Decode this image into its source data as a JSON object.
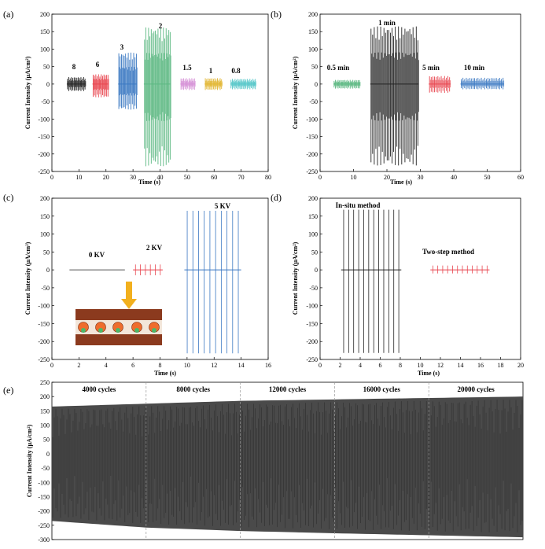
{
  "colors": {
    "black": "#222222",
    "red": "#e8454f",
    "blue": "#3a78c2",
    "green": "#5cb882",
    "pink": "#d58fd6",
    "yellow": "#e2b52f",
    "cyan": "#53c6c8",
    "grey": "#555555",
    "band": "#4a4a4a",
    "electrode": "#8b3a1e",
    "arrow": "#f2b01e"
  },
  "chart_data": [
    {
      "id": "a",
      "panel_label": "(a)",
      "type": "line",
      "xlabel": "Time (s)",
      "ylabel": "Current Intensity (μA/cm²)",
      "xlim": [
        0,
        80
      ],
      "ylim": [
        -250,
        200
      ],
      "xticks": [
        0,
        10,
        20,
        30,
        40,
        50,
        60,
        70,
        80
      ],
      "yticks": [
        -250,
        -200,
        -150,
        -100,
        -50,
        0,
        50,
        100,
        150,
        200
      ],
      "series": [
        {
          "label": "8",
          "x_range": [
            5.5,
            12.5
          ],
          "peak_pos": 20,
          "peak_neg": -20,
          "color": "black",
          "n": 14
        },
        {
          "label": "6",
          "x_range": [
            15,
            21
          ],
          "peak_pos": 28,
          "peak_neg": -38,
          "color": "red",
          "n": 12
        },
        {
          "label": "3",
          "x_range": [
            24.5,
            31.5
          ],
          "peak_pos": 90,
          "peak_neg": -73,
          "color": "blue",
          "n": 14
        },
        {
          "label": "2",
          "x_range": [
            34,
            44
          ],
          "peak_pos": 162,
          "peak_neg": -235,
          "color": "green",
          "n": 20
        },
        {
          "label": "1.5",
          "x_range": [
            47.5,
            53
          ],
          "peak_pos": 17,
          "peak_neg": -17,
          "color": "pink",
          "n": 11
        },
        {
          "label": "1",
          "x_range": [
            56.5,
            63
          ],
          "peak_pos": 17,
          "peak_neg": -17,
          "color": "yellow",
          "n": 13
        },
        {
          "label": "0.8",
          "x_range": [
            66,
            75.5
          ],
          "peak_pos": 15,
          "peak_neg": -15,
          "color": "cyan",
          "n": 19
        }
      ]
    },
    {
      "id": "b",
      "panel_label": "(b)",
      "type": "line",
      "xlabel": "Time (s)",
      "ylabel": "Current Intensity (μA/cm²)",
      "xlim": [
        0,
        60
      ],
      "ylim": [
        -250,
        200
      ],
      "xticks": [
        0,
        10,
        20,
        30,
        40,
        50,
        60
      ],
      "yticks": [
        -250,
        -200,
        -150,
        -100,
        -50,
        0,
        50,
        100,
        150,
        200
      ],
      "series": [
        {
          "label": "0.5 min",
          "x_range": [
            4,
            12
          ],
          "peak_pos": 12,
          "peak_neg": -13,
          "color": "green",
          "n": 20
        },
        {
          "label": "1 min",
          "x_range": [
            15,
            29.5
          ],
          "peak_pos": 165,
          "peak_neg": -233,
          "color": "black",
          "n": 30
        },
        {
          "label": "5 min",
          "x_range": [
            32.5,
            39
          ],
          "peak_pos": 23,
          "peak_neg": -25,
          "color": "red",
          "n": 13
        },
        {
          "label": "10 min",
          "x_range": [
            42,
            55
          ],
          "peak_pos": 18,
          "peak_neg": -15,
          "color": "blue",
          "n": 26
        }
      ]
    },
    {
      "id": "c",
      "panel_label": "(c)",
      "type": "line",
      "xlabel": "Time (s)",
      "ylabel": "Current Intensity (μA/cm²)",
      "xlim": [
        0,
        16
      ],
      "ylim": [
        -250,
        200
      ],
      "xticks": [
        0,
        2,
        4,
        6,
        8,
        10,
        12,
        14,
        16
      ],
      "yticks": [
        -250,
        -200,
        -150,
        -100,
        -50,
        0,
        50,
        100,
        150,
        200
      ],
      "series": [
        {
          "label": "0 KV",
          "x_range": [
            1.3,
            5.4
          ],
          "peak_pos": 0,
          "peak_neg": 0,
          "color": "grey",
          "n": 0
        },
        {
          "label": "2 KV",
          "x_range": [
            6.0,
            8.2
          ],
          "peak_pos": 15,
          "peak_neg": -15,
          "color": "red",
          "n": 6
        },
        {
          "label": "5 KV",
          "x_range": [
            9.8,
            14.0
          ],
          "peak_pos": 165,
          "peak_neg": -233,
          "color": "blue",
          "n": 10
        }
      ]
    },
    {
      "id": "d",
      "panel_label": "(d)",
      "type": "line",
      "xlabel": "Time (s)",
      "ylabel": "Current Intensity (μA/cm²)",
      "xlim": [
        0,
        20
      ],
      "ylim": [
        -250,
        200
      ],
      "xticks": [
        0,
        2,
        4,
        6,
        8,
        10,
        12,
        14,
        16,
        18,
        20
      ],
      "yticks": [
        -250,
        -200,
        -150,
        -100,
        -50,
        0,
        50,
        100,
        150,
        200
      ],
      "series": [
        {
          "label": "In-situ method",
          "x_range": [
            2.1,
            8.1
          ],
          "peak_pos": 168,
          "peak_neg": -232,
          "color": "black",
          "n": 12
        },
        {
          "label": "Two-step method",
          "x_range": [
            11.0,
            16.9
          ],
          "peak_pos": 12,
          "peak_neg": -10,
          "color": "red",
          "n": 12
        }
      ]
    },
    {
      "id": "e",
      "panel_label": "(e)",
      "type": "area",
      "ylabel": "Current Intensity (μA/cm²)",
      "ylim": [
        -300,
        250
      ],
      "yticks": [
        -300,
        -250,
        -200,
        -150,
        -100,
        -50,
        0,
        50,
        100,
        150,
        200,
        250
      ],
      "cycles": [
        0,
        20000
      ],
      "envelope_upper": [
        [
          0,
          165
        ],
        [
          4000,
          175
        ],
        [
          8000,
          185
        ],
        [
          12000,
          190
        ],
        [
          16000,
          195
        ],
        [
          20000,
          200
        ]
      ],
      "envelope_lower": [
        [
          0,
          -235
        ],
        [
          4000,
          -258
        ],
        [
          8000,
          -270
        ],
        [
          12000,
          -278
        ],
        [
          16000,
          -285
        ],
        [
          20000,
          -292
        ]
      ],
      "sections": [
        "4000 cycles",
        "8000 cycles",
        "12000 cycles",
        "16000 cycles",
        "20000 cycles"
      ]
    }
  ]
}
